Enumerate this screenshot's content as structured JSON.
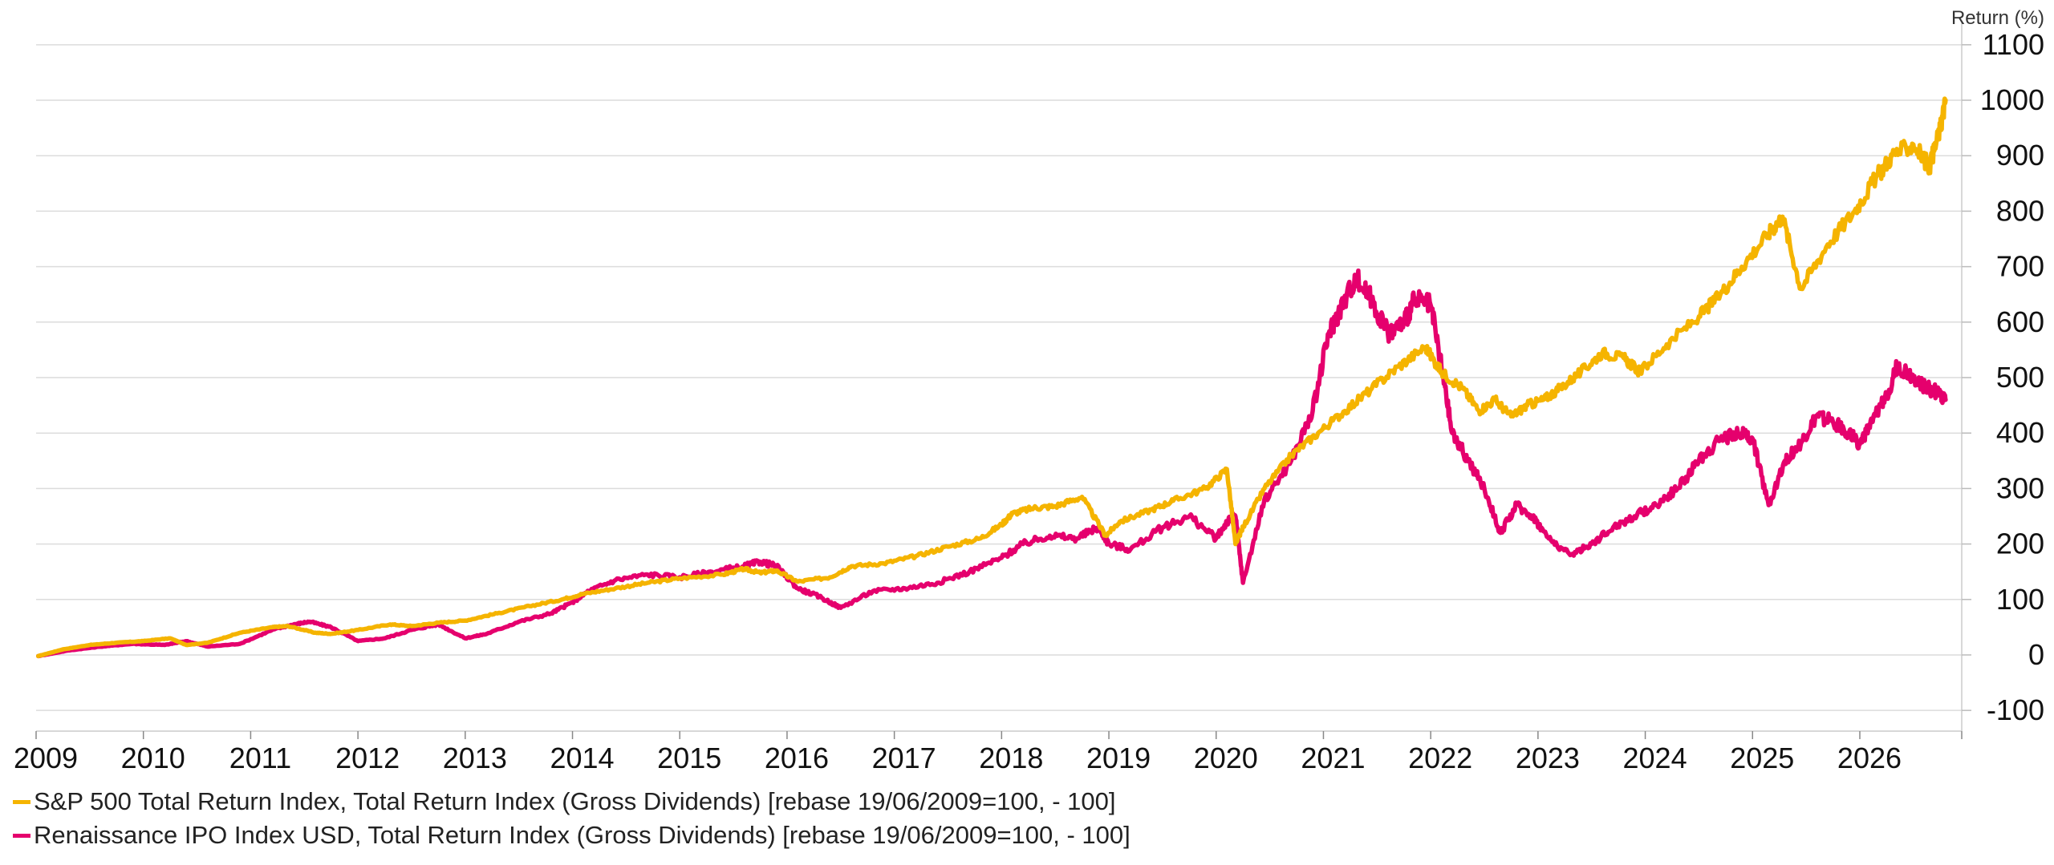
{
  "chart_data": {
    "type": "line",
    "title": "",
    "xlabel": "",
    "ylabel": "Return (%)",
    "y_axis_position": "right",
    "grid": true,
    "legend_position": "bottom-left",
    "xlim": [
      2009.0,
      2026.95
    ],
    "ylim": [
      -120,
      1120
    ],
    "x_ticks": [
      "2009",
      "2010",
      "2011",
      "2012",
      "2013",
      "2014",
      "2015",
      "2016",
      "2017",
      "2018",
      "2019",
      "2020",
      "2021",
      "2022",
      "2023",
      "2024",
      "2025",
      "2026"
    ],
    "y_ticks": [
      -100,
      0,
      100,
      200,
      300,
      400,
      500,
      600,
      700,
      800,
      900,
      1000,
      1100
    ],
    "series": [
      {
        "name": "S&P 500 Total Return Index, Total Return Index (Gross Dividends) [rebase 19/06/2009=100, - 100]",
        "color": "#F5B400",
        "x": [
          2009.02,
          2009.25,
          2009.5,
          2009.75,
          2010.0,
          2010.25,
          2010.4,
          2010.6,
          2010.9,
          2011.2,
          2011.35,
          2011.6,
          2011.75,
          2012.0,
          2012.3,
          2012.5,
          2012.75,
          2013.0,
          2013.3,
          2013.6,
          2013.9,
          2014.1,
          2014.4,
          2014.7,
          2015.0,
          2015.4,
          2015.6,
          2015.75,
          2015.9,
          2016.1,
          2016.4,
          2016.6,
          2016.9,
          2017.2,
          2017.5,
          2017.8,
          2018.0,
          2018.1,
          2018.3,
          2018.5,
          2018.75,
          2018.97,
          2019.1,
          2019.4,
          2019.6,
          2019.9,
          2020.1,
          2020.18,
          2020.25,
          2020.45,
          2020.7,
          2020.95,
          2021.2,
          2021.45,
          2021.7,
          2021.95,
          2022.1,
          2022.3,
          2022.45,
          2022.6,
          2022.75,
          2022.9,
          2023.05,
          2023.2,
          2023.4,
          2023.6,
          2023.8,
          2023.95,
          2024.2,
          2024.5,
          2024.7,
          2024.9,
          2025.15,
          2025.28,
          2025.45,
          2025.7,
          2025.95,
          2026.15,
          2026.3,
          2026.5,
          2026.65,
          2026.75,
          2026.8
        ],
        "y": [
          -2,
          10,
          18,
          22,
          25,
          30,
          18,
          22,
          40,
          50,
          52,
          40,
          38,
          45,
          55,
          52,
          58,
          62,
          75,
          88,
          100,
          110,
          120,
          130,
          138,
          145,
          155,
          148,
          152,
          132,
          140,
          160,
          165,
          178,
          195,
          210,
          235,
          255,
          265,
          268,
          285,
          215,
          240,
          262,
          278,
          300,
          335,
          200,
          230,
          300,
          360,
          400,
          440,
          480,
          520,
          555,
          510,
          480,
          440,
          460,
          430,
          450,
          460,
          480,
          510,
          545,
          535,
          510,
          560,
          610,
          650,
          700,
          760,
          790,
          660,
          740,
          800,
          860,
          900,
          920,
          880,
          950,
          1000
        ]
      },
      {
        "name": "Renaissance IPO Index USD, Total Return Index (Gross Dividends) [rebase 19/06/2009=100, - 100]",
        "color": "#E5006D",
        "x": [
          2009.02,
          2009.3,
          2009.6,
          2009.9,
          2010.2,
          2010.4,
          2010.6,
          2010.9,
          2011.2,
          2011.4,
          2011.55,
          2011.75,
          2012.0,
          2012.25,
          2012.5,
          2012.75,
          2013.0,
          2013.2,
          2013.5,
          2013.8,
          2014.0,
          2014.15,
          2014.4,
          2014.7,
          2015.0,
          2015.3,
          2015.6,
          2015.75,
          2015.9,
          2016.1,
          2016.3,
          2016.5,
          2016.8,
          2017.1,
          2017.4,
          2017.7,
          2018.0,
          2018.2,
          2018.45,
          2018.7,
          2018.9,
          2019.0,
          2019.2,
          2019.5,
          2019.75,
          2020.0,
          2020.1,
          2020.18,
          2020.25,
          2020.45,
          2020.7,
          2020.9,
          2021.05,
          2021.15,
          2021.3,
          2021.45,
          2021.6,
          2021.75,
          2021.85,
          2022.0,
          2022.1,
          2022.2,
          2022.35,
          2022.5,
          2022.65,
          2022.8,
          2022.95,
          2023.1,
          2023.3,
          2023.5,
          2023.7,
          2023.9,
          2024.1,
          2024.3,
          2024.5,
          2024.7,
          2024.9,
          2025.0,
          2025.15,
          2025.3,
          2025.45,
          2025.6,
          2025.75,
          2025.9,
          2026.0,
          2026.12,
          2026.25,
          2026.35,
          2026.5,
          2026.65,
          2026.75,
          2026.8
        ],
        "y": [
          -2,
          8,
          15,
          20,
          18,
          25,
          15,
          20,
          45,
          55,
          60,
          50,
          25,
          30,
          45,
          55,
          30,
          38,
          60,
          75,
          95,
          115,
          135,
          145,
          140,
          150,
          160,
          168,
          160,
          120,
          105,
          85,
          115,
          120,
          130,
          150,
          175,
          200,
          215,
          210,
          230,
          200,
          190,
          230,
          250,
          210,
          240,
          250,
          130,
          280,
          350,
          440,
          580,
          620,
          680,
          640,
          580,
          600,
          640,
          630,
          520,
          400,
          350,
          300,
          220,
          270,
          250,
          210,
          180,
          200,
          230,
          250,
          270,
          300,
          350,
          390,
          400,
          390,
          270,
          350,
          380,
          430,
          420,
          400,
          380,
          420,
          470,
          520,
          500,
          480,
          470,
          460
        ]
      }
    ]
  }
}
